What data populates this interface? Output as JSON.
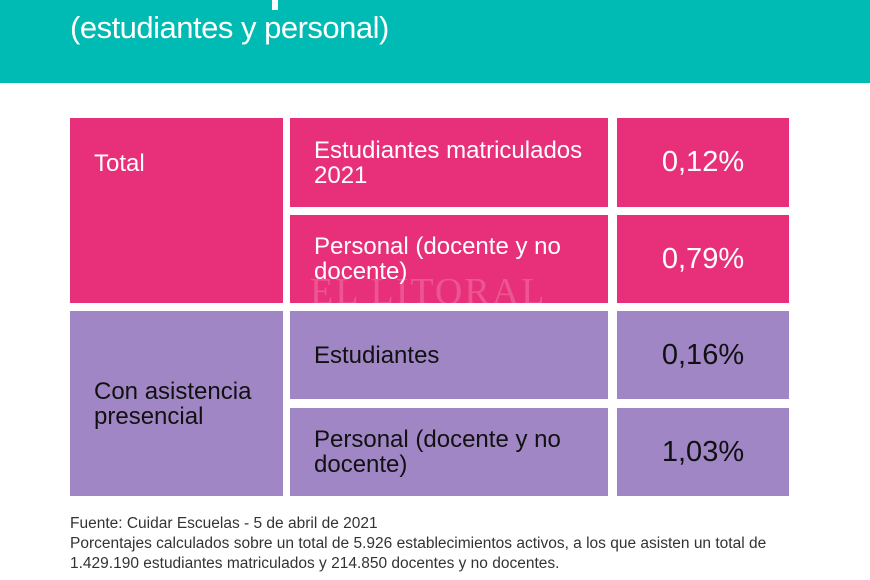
{
  "header": {
    "subtitle": "(estudiantes y personal)",
    "color": "#00BBB4"
  },
  "table": {
    "groups": [
      {
        "label": "Total",
        "color": "#E8307A",
        "rows": [
          {
            "label": "Estudiantes matriculados 2021",
            "value": "0,12%"
          },
          {
            "label": "Personal (docente y no docente)",
            "value": "0,79%"
          }
        ]
      },
      {
        "label": "Con asistencia presencial",
        "color": "#A086C4",
        "rows": [
          {
            "label": "Estudiantes",
            "value": "0,16%"
          },
          {
            "label": "Personal (docente y no docente)",
            "value": "1,03%"
          }
        ]
      }
    ]
  },
  "watermark": "EL LITORAL",
  "footer": {
    "source": "Fuente: Cuidar Escuelas - 5 de abril de 2021",
    "note": "Porcentajes calculados sobre un total de 5.926 establecimientos activos, a los que asisten un total de 1.429.190 estudiantes matriculados y 214.850 docentes y no docentes."
  }
}
